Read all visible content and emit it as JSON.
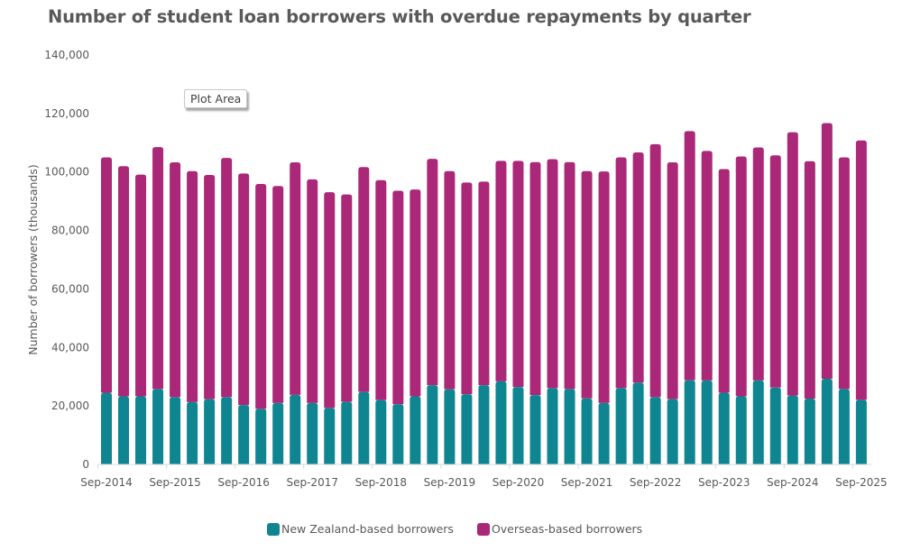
{
  "title": "Number of student loan borrowers with overdue repayments by quarter",
  "tooltip": "Plot Area",
  "colors": {
    "nz": "#0e8590",
    "overseas": "#ab2878",
    "axis": "#d9d9d9",
    "text": "#595959"
  },
  "legend": [
    {
      "label": "New Zealand-based borrowers",
      "color": "#0e8590"
    },
    {
      "label": "Overseas-based borrowers",
      "color": "#ab2878"
    }
  ],
  "chart_data": {
    "type": "bar",
    "stacked": true,
    "title": "Number of student loan borrowers with overdue repayments by quarter",
    "xlabel": "",
    "ylabel": "Number of borrowers (thousands)",
    "ylim": [
      0,
      140000
    ],
    "yticks": [
      0,
      20000,
      40000,
      60000,
      80000,
      100000,
      120000,
      140000
    ],
    "ytick_labels": [
      "0",
      "20,000",
      "40,000",
      "60,000",
      "80,000",
      "100,000",
      "120,000",
      "140,000"
    ],
    "xtick_labels": [
      "Sep-2014",
      "Sep-2015",
      "Sep-2016",
      "Sep-2017",
      "Sep-2018",
      "Sep-2019",
      "Sep-2020",
      "Sep-2021",
      "Sep-2022",
      "Sep-2023",
      "Sep-2024",
      "Sep-2025"
    ],
    "grid": false,
    "legend_position": "bottom",
    "categories": [
      "Sep-2014",
      "Dec-2014",
      "Mar-2015",
      "Jun-2015",
      "Sep-2015",
      "Dec-2015",
      "Mar-2016",
      "Jun-2016",
      "Sep-2016",
      "Dec-2016",
      "Mar-2017",
      "Jun-2017",
      "Sep-2017",
      "Dec-2017",
      "Mar-2018",
      "Jun-2018",
      "Sep-2018",
      "Dec-2018",
      "Mar-2019",
      "Jun-2019",
      "Sep-2019",
      "Dec-2019",
      "Mar-2020",
      "Jun-2020",
      "Sep-2020",
      "Dec-2020",
      "Mar-2021",
      "Jun-2021",
      "Sep-2021",
      "Dec-2021",
      "Mar-2022",
      "Jun-2022",
      "Sep-2022",
      "Dec-2022",
      "Mar-2023",
      "Jun-2023",
      "Sep-2023",
      "Dec-2023",
      "Mar-2024",
      "Jun-2024",
      "Sep-2024",
      "Dec-2024",
      "Mar-2025",
      "Jun-2025",
      "Sep-2025"
    ],
    "series": [
      {
        "name": "New Zealand-based borrowers",
        "values": [
          24500,
          23300,
          23300,
          25800,
          23000,
          21300,
          22300,
          23000,
          20300,
          19000,
          21000,
          23800,
          21000,
          19300,
          21400,
          24800,
          22000,
          20600,
          23300,
          27100,
          25700,
          24000,
          27100,
          28400,
          26500,
          23700,
          26100,
          25800,
          22600,
          21000,
          26100,
          28000,
          23000,
          22300,
          28800,
          28700,
          24500,
          23300,
          28700,
          26300,
          23600,
          22500,
          29300,
          25800,
          22100
        ]
      },
      {
        "name": "Overseas-based borrowers",
        "values": [
          80500,
          78700,
          75800,
          82700,
          80300,
          79000,
          76700,
          81800,
          79200,
          76900,
          74200,
          79500,
          76500,
          73800,
          70900,
          76900,
          75200,
          73000,
          70700,
          77400,
          74600,
          72400,
          69600,
          75400,
          77300,
          79700,
          78300,
          77600,
          77700,
          79200,
          78900,
          78700,
          86500,
          81000,
          85200,
          78500,
          76500,
          82000,
          79700,
          79400,
          90000,
          81200,
          87400,
          79200,
          88700
        ]
      },
      {
        "name": "Total",
        "values": [
          105000,
          102000,
          99100,
          108500,
          103300,
          100300,
          99000,
          104800,
          99500,
          95900,
          95200,
          103300,
          97500,
          93100,
          92300,
          101700,
          97200,
          93600,
          94000,
          104500,
          100300,
          96400,
          96700,
          103800,
          103800,
          103400,
          104400,
          103400,
          100300,
          100200,
          105000,
          106700,
          109500,
          103300,
          114000,
          107200,
          101000,
          105300,
          108400,
          105700,
          113600,
          103700,
          116700,
          105000,
          110800
        ]
      }
    ]
  }
}
